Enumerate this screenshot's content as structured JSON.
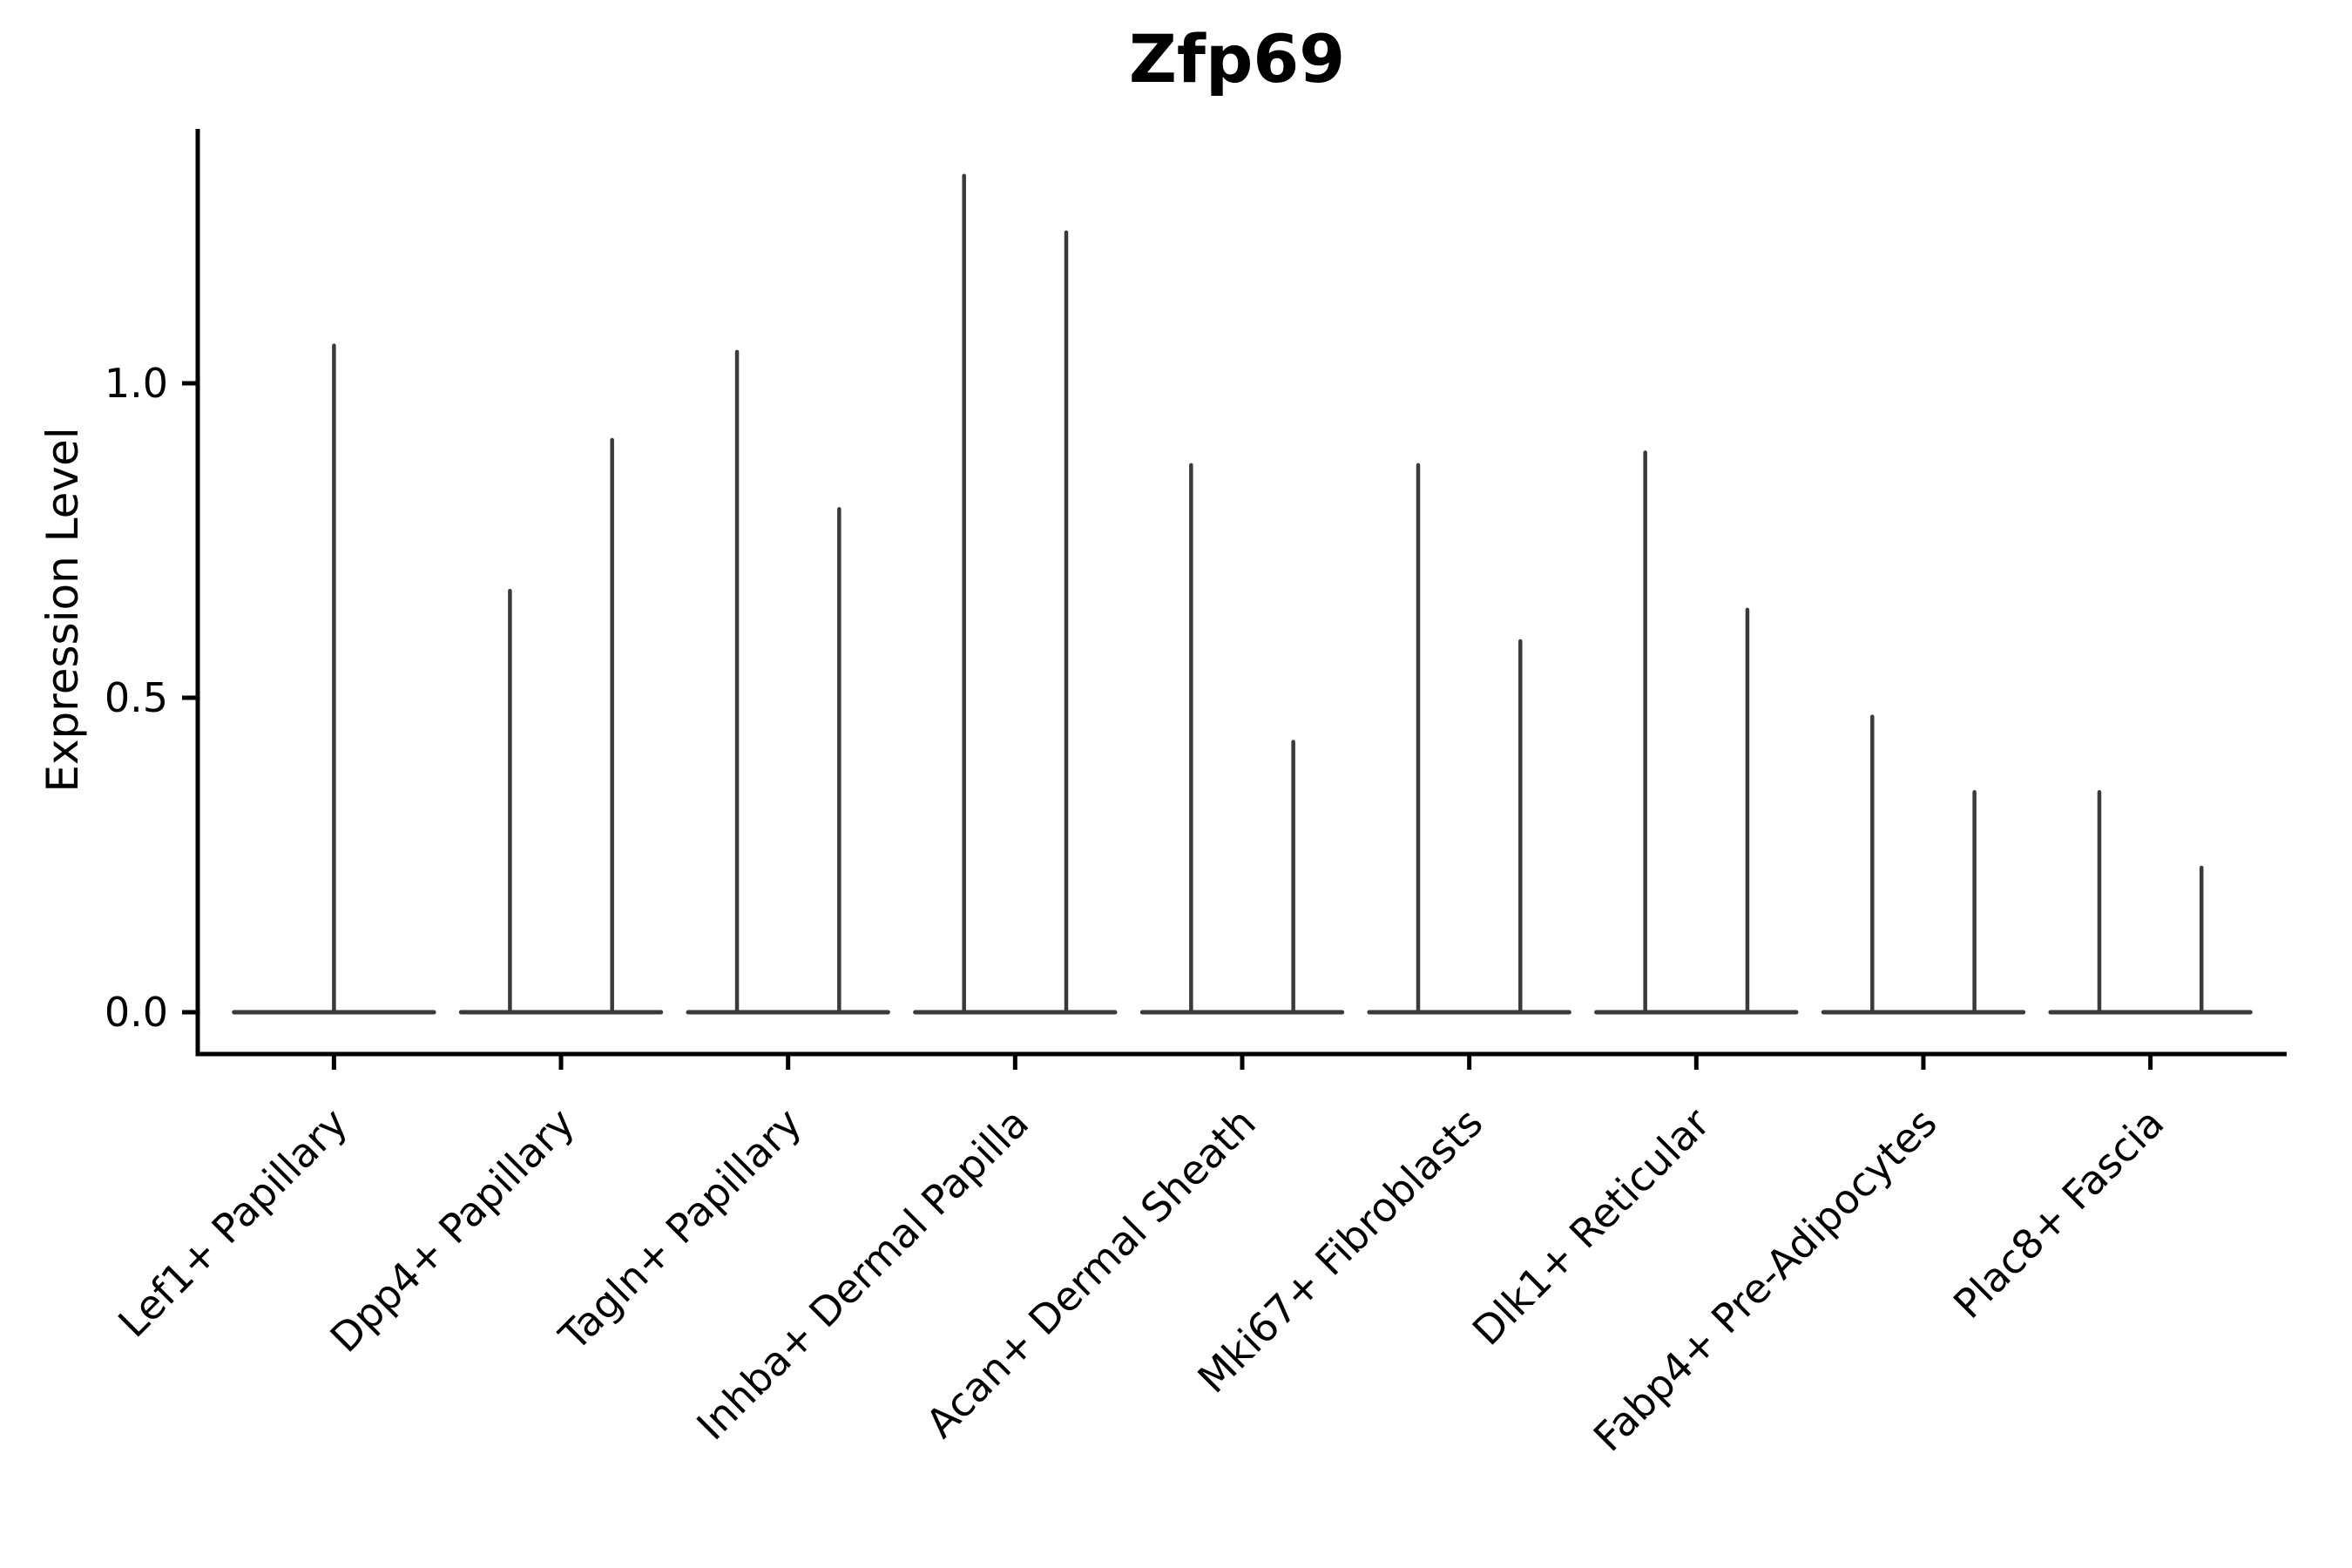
{
  "figure": {
    "background": "#ffffff"
  },
  "chart_data": {
    "type": "violin",
    "title": "Zfp69",
    "xlabel": "",
    "ylabel": "Expression Level",
    "legend": "none",
    "grid": false,
    "yticks": [
      "0.0",
      "0.5",
      "1.0"
    ],
    "ytick_values": [
      0.0,
      0.5,
      1.0
    ],
    "ylim": [
      -0.066,
      1.404
    ],
    "baseline_value": 0.0,
    "violin_half_width": 0.44,
    "spike_offset_units": 0.225,
    "categories": [
      "Lef1+ Papillary",
      "Dpp4+ Papillary",
      "Tagln+ Papillary",
      "Inhba+ Dermal Papilla",
      "Acan+ Dermal Sheath",
      "Mki67+ Fibroblasts",
      "Dlk1+ Reticular",
      "Fabp4+ Pre-Adipocytes",
      "Plac8+ Fascia"
    ],
    "series": [
      {
        "category": "Lef1+ Papillary",
        "spikes": [
          {
            "offset": 0.0,
            "max": 1.06
          }
        ]
      },
      {
        "category": "Dpp4+ Papillary",
        "spikes": [
          {
            "offset": -0.225,
            "max": 0.67
          },
          {
            "offset": 0.225,
            "max": 0.91
          }
        ]
      },
      {
        "category": "Tagln+ Papillary",
        "spikes": [
          {
            "offset": -0.225,
            "max": 1.05
          },
          {
            "offset": 0.225,
            "max": 0.8
          }
        ]
      },
      {
        "category": "Inhba+ Dermal Papilla",
        "spikes": [
          {
            "offset": -0.225,
            "max": 1.33
          },
          {
            "offset": 0.225,
            "max": 1.24
          }
        ]
      },
      {
        "category": "Acan+ Dermal Sheath",
        "spikes": [
          {
            "offset": -0.225,
            "max": 0.87
          },
          {
            "offset": 0.225,
            "max": 0.43
          }
        ]
      },
      {
        "category": "Mki67+ Fibroblasts",
        "spikes": [
          {
            "offset": -0.225,
            "max": 0.87
          },
          {
            "offset": 0.225,
            "max": 0.59
          }
        ]
      },
      {
        "category": "Dlk1+ Reticular",
        "spikes": [
          {
            "offset": -0.225,
            "max": 0.89
          },
          {
            "offset": 0.225,
            "max": 0.64
          }
        ]
      },
      {
        "category": "Fabp4+ Pre-Adipocytes",
        "spikes": [
          {
            "offset": -0.225,
            "max": 0.47
          },
          {
            "offset": 0.225,
            "max": 0.35
          }
        ]
      },
      {
        "category": "Plac8+ Fascia",
        "spikes": [
          {
            "offset": -0.225,
            "max": 0.35
          },
          {
            "offset": 0.225,
            "max": 0.23
          }
        ]
      }
    ],
    "colors": {
      "violin": "#3A3A3A",
      "axis": "#000000",
      "text": "#000000"
    }
  }
}
